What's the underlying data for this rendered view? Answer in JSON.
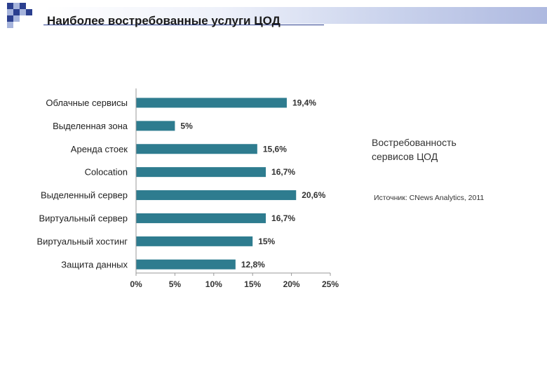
{
  "page": {
    "title": "Наиболее востребованные услуги ЦОД"
  },
  "side_note": {
    "title": "Востребованность\nсервисов ЦОД",
    "source": "Источник: CNews Analytics, 2011"
  },
  "colors": {
    "bar": "#2e7c8f",
    "axis": "#999999",
    "deco_dark": "#2b3f8f",
    "deco_light": "#a6b4dc"
  },
  "chart_data": {
    "type": "bar",
    "orientation": "horizontal",
    "categories": [
      "Облачные сервисы",
      "Выделенная зона",
      "Аренда стоек",
      "Colocation",
      "Выделенный сервер",
      "Виртуальный сервер",
      "Виртуальный хостинг",
      "Защита данных"
    ],
    "values": [
      19.4,
      5,
      15.6,
      16.7,
      20.6,
      16.7,
      15,
      12.8
    ],
    "value_labels": [
      "19,4%",
      "5%",
      "15,6%",
      "16,7%",
      "20,6%",
      "16,7%",
      "15%",
      "12,8%"
    ],
    "xlim": [
      0,
      25
    ],
    "x_ticks": [
      0,
      5,
      10,
      15,
      20,
      25
    ],
    "x_tick_labels": [
      "0%",
      "5%",
      "10%",
      "15%",
      "20%",
      "25%"
    ],
    "grid": false,
    "legend": "none"
  }
}
